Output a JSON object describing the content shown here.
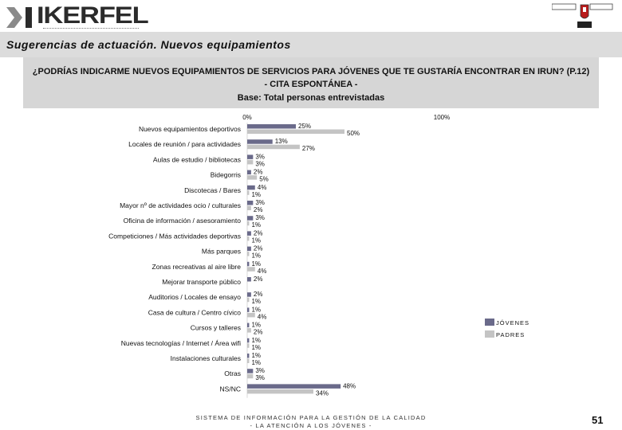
{
  "header": {
    "brand": "IKERFEL",
    "section_title": "Sugerencias de actuación. Nuevos equipamientos"
  },
  "question": {
    "line1": "¿PODRÍAS INDICARME NUEVOS EQUIPAMIENTOS DE SERVICIOS PARA JÓVENES QUE TE GUSTARÍA ENCONTRAR EN IRUN? (P.12)",
    "line2": "- CITA ESPONTÁNEA -",
    "line3": "Base: Total personas entrevistadas"
  },
  "footer": {
    "line1": "SISTEMA DE INFORMACIÓN PARA LA GESTIÓN DE LA CALIDAD",
    "line2": "- LA ATENCIÓN A LOS JÓVENES -",
    "page": "51"
  },
  "colors": {
    "jovenes": "#6a6a8a",
    "padres": "#c4c4c4"
  },
  "chart_data": {
    "type": "bar",
    "orientation": "horizontal",
    "xlim": [
      0,
      100
    ],
    "tick_labels": [
      "0%",
      "100%"
    ],
    "legend_position": "right",
    "categories": [
      "Nuevos equipamientos deportivos",
      "Locales de reunión / para actividades",
      "Aulas de estudio / bibliotecas",
      "Bidegorris",
      "Discotecas / Bares",
      "Mayor nº de actividades ocio / culturales",
      "Oficina de información / asesoramiento",
      "Competiciones / Más actividades deportivas",
      "Más parques",
      "Zonas recreativas al aire libre",
      "Mejorar transporte público",
      "Auditorios / Locales de ensayo",
      "Casa de cultura / Centro cívico",
      "Cursos y talleres",
      "Nuevas tecnologías / Internet / Área wifi",
      "Instalaciones culturales",
      "Otras",
      "NS/NC"
    ],
    "series": [
      {
        "name": "JÓVENES",
        "values": [
          25,
          13,
          3,
          2,
          4,
          3,
          3,
          2,
          2,
          1,
          2,
          2,
          1,
          1,
          1,
          1,
          3,
          48
        ]
      },
      {
        "name": "PADRES",
        "values": [
          50,
          27,
          3,
          5,
          1,
          2,
          1,
          1,
          1,
          4,
          null,
          1,
          4,
          2,
          1,
          1,
          3,
          34
        ]
      }
    ],
    "value_labels": [
      [
        "25%",
        "50%"
      ],
      [
        "13%",
        "27%"
      ],
      [
        "3%",
        "3%"
      ],
      [
        "2%",
        "5%"
      ],
      [
        "4%",
        "1%"
      ],
      [
        "3%",
        "2%"
      ],
      [
        "3%",
        "1%"
      ],
      [
        "2%",
        "1%"
      ],
      [
        "2%",
        "1%"
      ],
      [
        "1%",
        "4%"
      ],
      [
        "2%",
        ""
      ],
      [
        "2%",
        "1%"
      ],
      [
        "1%",
        "4%"
      ],
      [
        "1%",
        "2%"
      ],
      [
        "1%",
        "1%"
      ],
      [
        "1%",
        "1%"
      ],
      [
        "3%",
        "3%"
      ],
      [
        "48%",
        "34%"
      ]
    ]
  }
}
